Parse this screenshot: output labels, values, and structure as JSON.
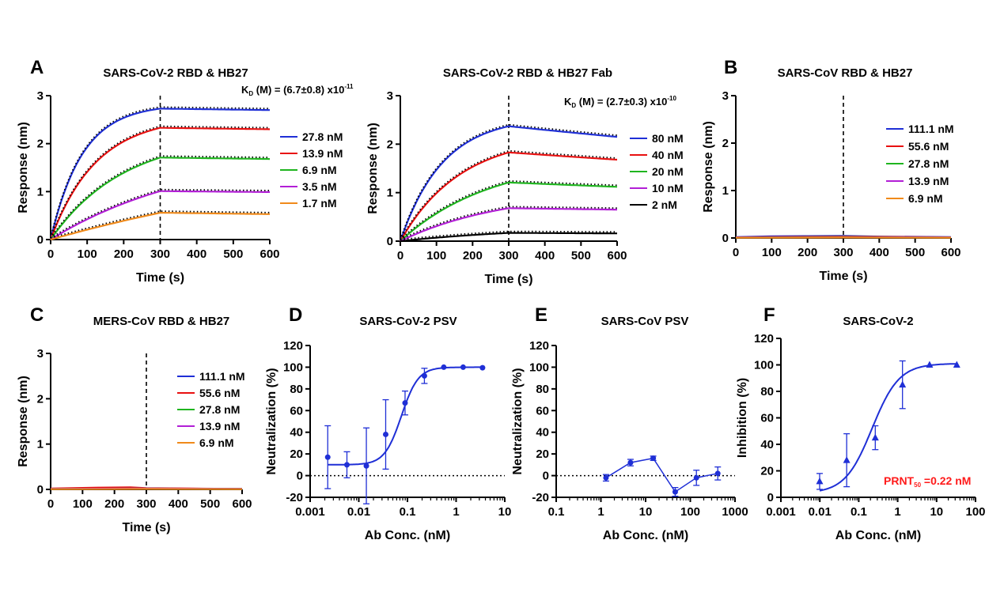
{
  "panels": [
    {
      "id": "A1",
      "panel_label": "A",
      "title": "SARS-CoV-2 RBD & HB27",
      "kd": {
        "main": "K",
        "sub": "D",
        "rest": "(M) = (6.7±0.8) x10",
        "exp": "-11"
      }
    },
    {
      "id": "A2",
      "panel_label": "",
      "title": "SARS-CoV-2 RBD & HB27 Fab",
      "kd": {
        "main": "K",
        "sub": "D",
        "rest": "(M) = (2.7±0.3) x10",
        "exp": "-10"
      }
    },
    {
      "id": "B",
      "panel_label": "B",
      "title": "SARS-CoV RBD & HB27"
    },
    {
      "id": "C",
      "panel_label": "C",
      "title": "MERS-CoV RBD & HB27"
    },
    {
      "id": "D",
      "panel_label": "D",
      "title": "SARS-CoV-2 PSV"
    },
    {
      "id": "E",
      "panel_label": "E",
      "title": "SARS-CoV PSV"
    },
    {
      "id": "F",
      "panel_label": "F",
      "title": "SARS-CoV-2",
      "annotation": {
        "main": "PRNT",
        "sub": "50",
        "rest": "=0.22 nM",
        "color": "#ff1a1a"
      }
    }
  ],
  "colors": {
    "blue": "#1f2fd6",
    "red": "#e81010",
    "green": "#1fb51f",
    "magenta": "#b21fd6",
    "orange": "#f08a1a",
    "black": "#000000",
    "fit": "#000000"
  },
  "chart_data": [
    {
      "type": "line",
      "panel": "A1",
      "xlabel": "Time (s)",
      "ylabel": "Response (nm)",
      "xlim": [
        0,
        600
      ],
      "ylim": [
        0,
        3
      ],
      "xticks": [
        0,
        100,
        200,
        300,
        400,
        500,
        600
      ],
      "yticks": [
        0,
        1,
        2,
        3
      ],
      "dissociation_start": 300,
      "legend": "right",
      "fit_lines": "dotted",
      "series": [
        {
          "name": "27.8 nM",
          "color": "#1f2fd6",
          "plateau": 2.73,
          "end": 2.7,
          "k": 0.0115
        },
        {
          "name": "13.9 nM",
          "color": "#e81010",
          "plateau": 2.33,
          "end": 2.3,
          "k": 0.008
        },
        {
          "name": "6.9 nM",
          "color": "#1fb51f",
          "plateau": 1.71,
          "end": 1.68,
          "k": 0.005
        },
        {
          "name": "3.5 nM",
          "color": "#b21fd6",
          "plateau": 1.01,
          "end": 0.99,
          "k": 0.0025
        },
        {
          "name": "1.7 nM",
          "color": "#f08a1a",
          "plateau": 0.56,
          "end": 0.53,
          "k": 0.001
        }
      ]
    },
    {
      "type": "line",
      "panel": "A2",
      "xlabel": "Time (s)",
      "ylabel": "Response (nm)",
      "xlim": [
        0,
        600
      ],
      "ylim": [
        0,
        3
      ],
      "xticks": [
        0,
        100,
        200,
        300,
        400,
        500,
        600
      ],
      "yticks": [
        0,
        1,
        2,
        3
      ],
      "dissociation_start": 300,
      "legend": "right",
      "fit_lines": "dotted",
      "series": [
        {
          "name": "80 nM",
          "color": "#1f2fd6",
          "plateau": 2.37,
          "end": 2.15,
          "k": 0.0085
        },
        {
          "name": "40 nM",
          "color": "#e81010",
          "plateau": 1.83,
          "end": 1.68,
          "k": 0.006
        },
        {
          "name": "20 nM",
          "color": "#1fb51f",
          "plateau": 1.21,
          "end": 1.12,
          "k": 0.004
        },
        {
          "name": "10 nM",
          "color": "#b21fd6",
          "plateau": 0.68,
          "end": 0.65,
          "k": 0.0035
        },
        {
          "name": "2 nM",
          "color": "#000000",
          "plateau": 0.17,
          "end": 0.16,
          "k": 0.0025
        }
      ]
    },
    {
      "type": "line",
      "panel": "B",
      "xlabel": "Time (s)",
      "ylabel": "Response (nm)",
      "xlim": [
        0,
        600
      ],
      "ylim": [
        0,
        3
      ],
      "xticks": [
        0,
        100,
        200,
        300,
        400,
        500,
        600
      ],
      "yticks": [
        0,
        1,
        2,
        3
      ],
      "dissociation_start": 300,
      "legend": "right",
      "series": [
        {
          "name": "111.1 nM",
          "color": "#1f2fd6",
          "x": [
            0,
            100,
            200,
            300,
            400,
            500,
            600
          ],
          "y": [
            0.02,
            0.035,
            0.04,
            0.045,
            0.03,
            0.025,
            0.02
          ]
        },
        {
          "name": "55.6 nM",
          "color": "#e81010",
          "x": [
            0,
            300,
            600
          ],
          "y": [
            0.015,
            0.03,
            0.015
          ]
        },
        {
          "name": "27.8 nM",
          "color": "#1fb51f",
          "x": [
            0,
            300,
            600
          ],
          "y": [
            0.01,
            0.02,
            0.01
          ]
        },
        {
          "name": "13.9 nM",
          "color": "#b21fd6",
          "x": [
            0,
            300,
            600
          ],
          "y": [
            0.01,
            0.015,
            0.01
          ]
        },
        {
          "name": "6.9 nM",
          "color": "#f08a1a",
          "x": [
            0,
            300,
            600
          ],
          "y": [
            0.005,
            0.01,
            0.005
          ]
        }
      ]
    },
    {
      "type": "line",
      "panel": "C",
      "xlabel": "Time (s)",
      "ylabel": "Response (nm)",
      "xlim": [
        0,
        600
      ],
      "ylim": [
        0,
        3
      ],
      "xticks": [
        0,
        100,
        200,
        300,
        400,
        500,
        600
      ],
      "yticks": [
        0,
        1,
        2,
        3
      ],
      "dissociation_start": 300,
      "legend": "right",
      "series": [
        {
          "name": "111.1 nM",
          "color": "#1f2fd6",
          "x": [
            0,
            150,
            300,
            450,
            600
          ],
          "y": [
            0.01,
            0.02,
            0.02,
            0.015,
            0.01
          ]
        },
        {
          "name": "55.6 nM",
          "color": "#e81010",
          "x": [
            0,
            150,
            250,
            300,
            450,
            600
          ],
          "y": [
            0.02,
            0.04,
            0.045,
            0.03,
            0.02,
            0.01
          ]
        },
        {
          "name": "27.8 nM",
          "color": "#1fb51f",
          "x": [
            0,
            300,
            600
          ],
          "y": [
            0.01,
            0.02,
            0.01
          ]
        },
        {
          "name": "13.9 nM",
          "color": "#b21fd6",
          "x": [
            0,
            300,
            600
          ],
          "y": [
            0.01,
            0.02,
            0.01
          ]
        },
        {
          "name": "6.9 nM",
          "color": "#f08a1a",
          "x": [
            0,
            300,
            600
          ],
          "y": [
            0.005,
            0.01,
            0.005
          ]
        }
      ]
    },
    {
      "type": "scatter",
      "panel": "D",
      "xlabel": "Ab Conc. (nM)",
      "ylabel": "Neutralization (%)",
      "xscale": "log",
      "xlim": [
        0.001,
        10
      ],
      "ylim": [
        -20,
        120
      ],
      "xticks": [
        0.001,
        0.01,
        0.1,
        1,
        10
      ],
      "xticklabels": [
        "0.001",
        "0.01",
        "0.1",
        "1",
        "10"
      ],
      "yticks": [
        -20,
        0,
        20,
        40,
        60,
        80,
        100,
        120
      ],
      "zero_line": "dotted",
      "color": "#1f2fd6",
      "marker": "circle",
      "fit": "sigmoid",
      "fit_params": {
        "bottom": 10,
        "top": 100,
        "ec50": 0.075,
        "hill": 2.5
      },
      "points": [
        {
          "x": 0.0023,
          "y": 17,
          "err": 29
        },
        {
          "x": 0.0057,
          "y": 10,
          "err": 12
        },
        {
          "x": 0.0143,
          "y": 9,
          "err": 35
        },
        {
          "x": 0.0357,
          "y": 38,
          "err": 32
        },
        {
          "x": 0.0893,
          "y": 67,
          "err": 11
        },
        {
          "x": 0.223,
          "y": 92,
          "err": 7
        },
        {
          "x": 0.558,
          "y": 100,
          "err": 0
        },
        {
          "x": 1.395,
          "y": 100,
          "err": 0
        },
        {
          "x": 3.49,
          "y": 99.5,
          "err": 0
        }
      ]
    },
    {
      "type": "line",
      "panel": "E",
      "xlabel": "Ab Conc. (nM)",
      "ylabel": "Neutralization (%)",
      "xscale": "log",
      "xlim": [
        0.1,
        1000
      ],
      "ylim": [
        -20,
        120
      ],
      "xticks": [
        0.1,
        1,
        10,
        100,
        1000
      ],
      "xticklabels": [
        "0.1",
        "1",
        "10",
        "100",
        "1000"
      ],
      "yticks": [
        -20,
        0,
        20,
        40,
        60,
        80,
        100,
        120
      ],
      "zero_line": "dotted",
      "color": "#1f2fd6",
      "marker": "circle",
      "points": [
        {
          "x": 1.3,
          "y": -2,
          "err": 3
        },
        {
          "x": 4.6,
          "y": 12,
          "err": 3
        },
        {
          "x": 14.8,
          "y": 16,
          "err": 2
        },
        {
          "x": 46,
          "y": -15,
          "err": 4
        },
        {
          "x": 137,
          "y": -2,
          "err": 7
        },
        {
          "x": 412,
          "y": 2,
          "err": 6
        }
      ]
    },
    {
      "type": "scatter",
      "panel": "F",
      "xlabel": "Ab Conc. (nM)",
      "ylabel": "Inhibition (%)",
      "xscale": "log",
      "xlim": [
        0.001,
        100
      ],
      "ylim": [
        0,
        120
      ],
      "xticks": [
        0.001,
        0.01,
        0.1,
        1,
        10,
        100
      ],
      "xticklabels": [
        "0.001",
        "0.01",
        "0.1",
        "1",
        "10",
        "100"
      ],
      "yticks": [
        0,
        20,
        40,
        60,
        80,
        100,
        120
      ],
      "color": "#1f2fd6",
      "marker": "triangle",
      "fit": "sigmoid",
      "fit_params": {
        "bottom": 3,
        "top": 101,
        "ec50": 0.22,
        "hill": 1.25
      },
      "points": [
        {
          "x": 0.0099,
          "y": 12,
          "err": 6
        },
        {
          "x": 0.049,
          "y": 28,
          "err": 20
        },
        {
          "x": 0.266,
          "y": 45,
          "err": 9
        },
        {
          "x": 1.33,
          "y": 85,
          "err": 18
        },
        {
          "x": 6.6,
          "y": 100,
          "err": 0
        },
        {
          "x": 33,
          "y": 100,
          "err": 0
        }
      ]
    }
  ]
}
